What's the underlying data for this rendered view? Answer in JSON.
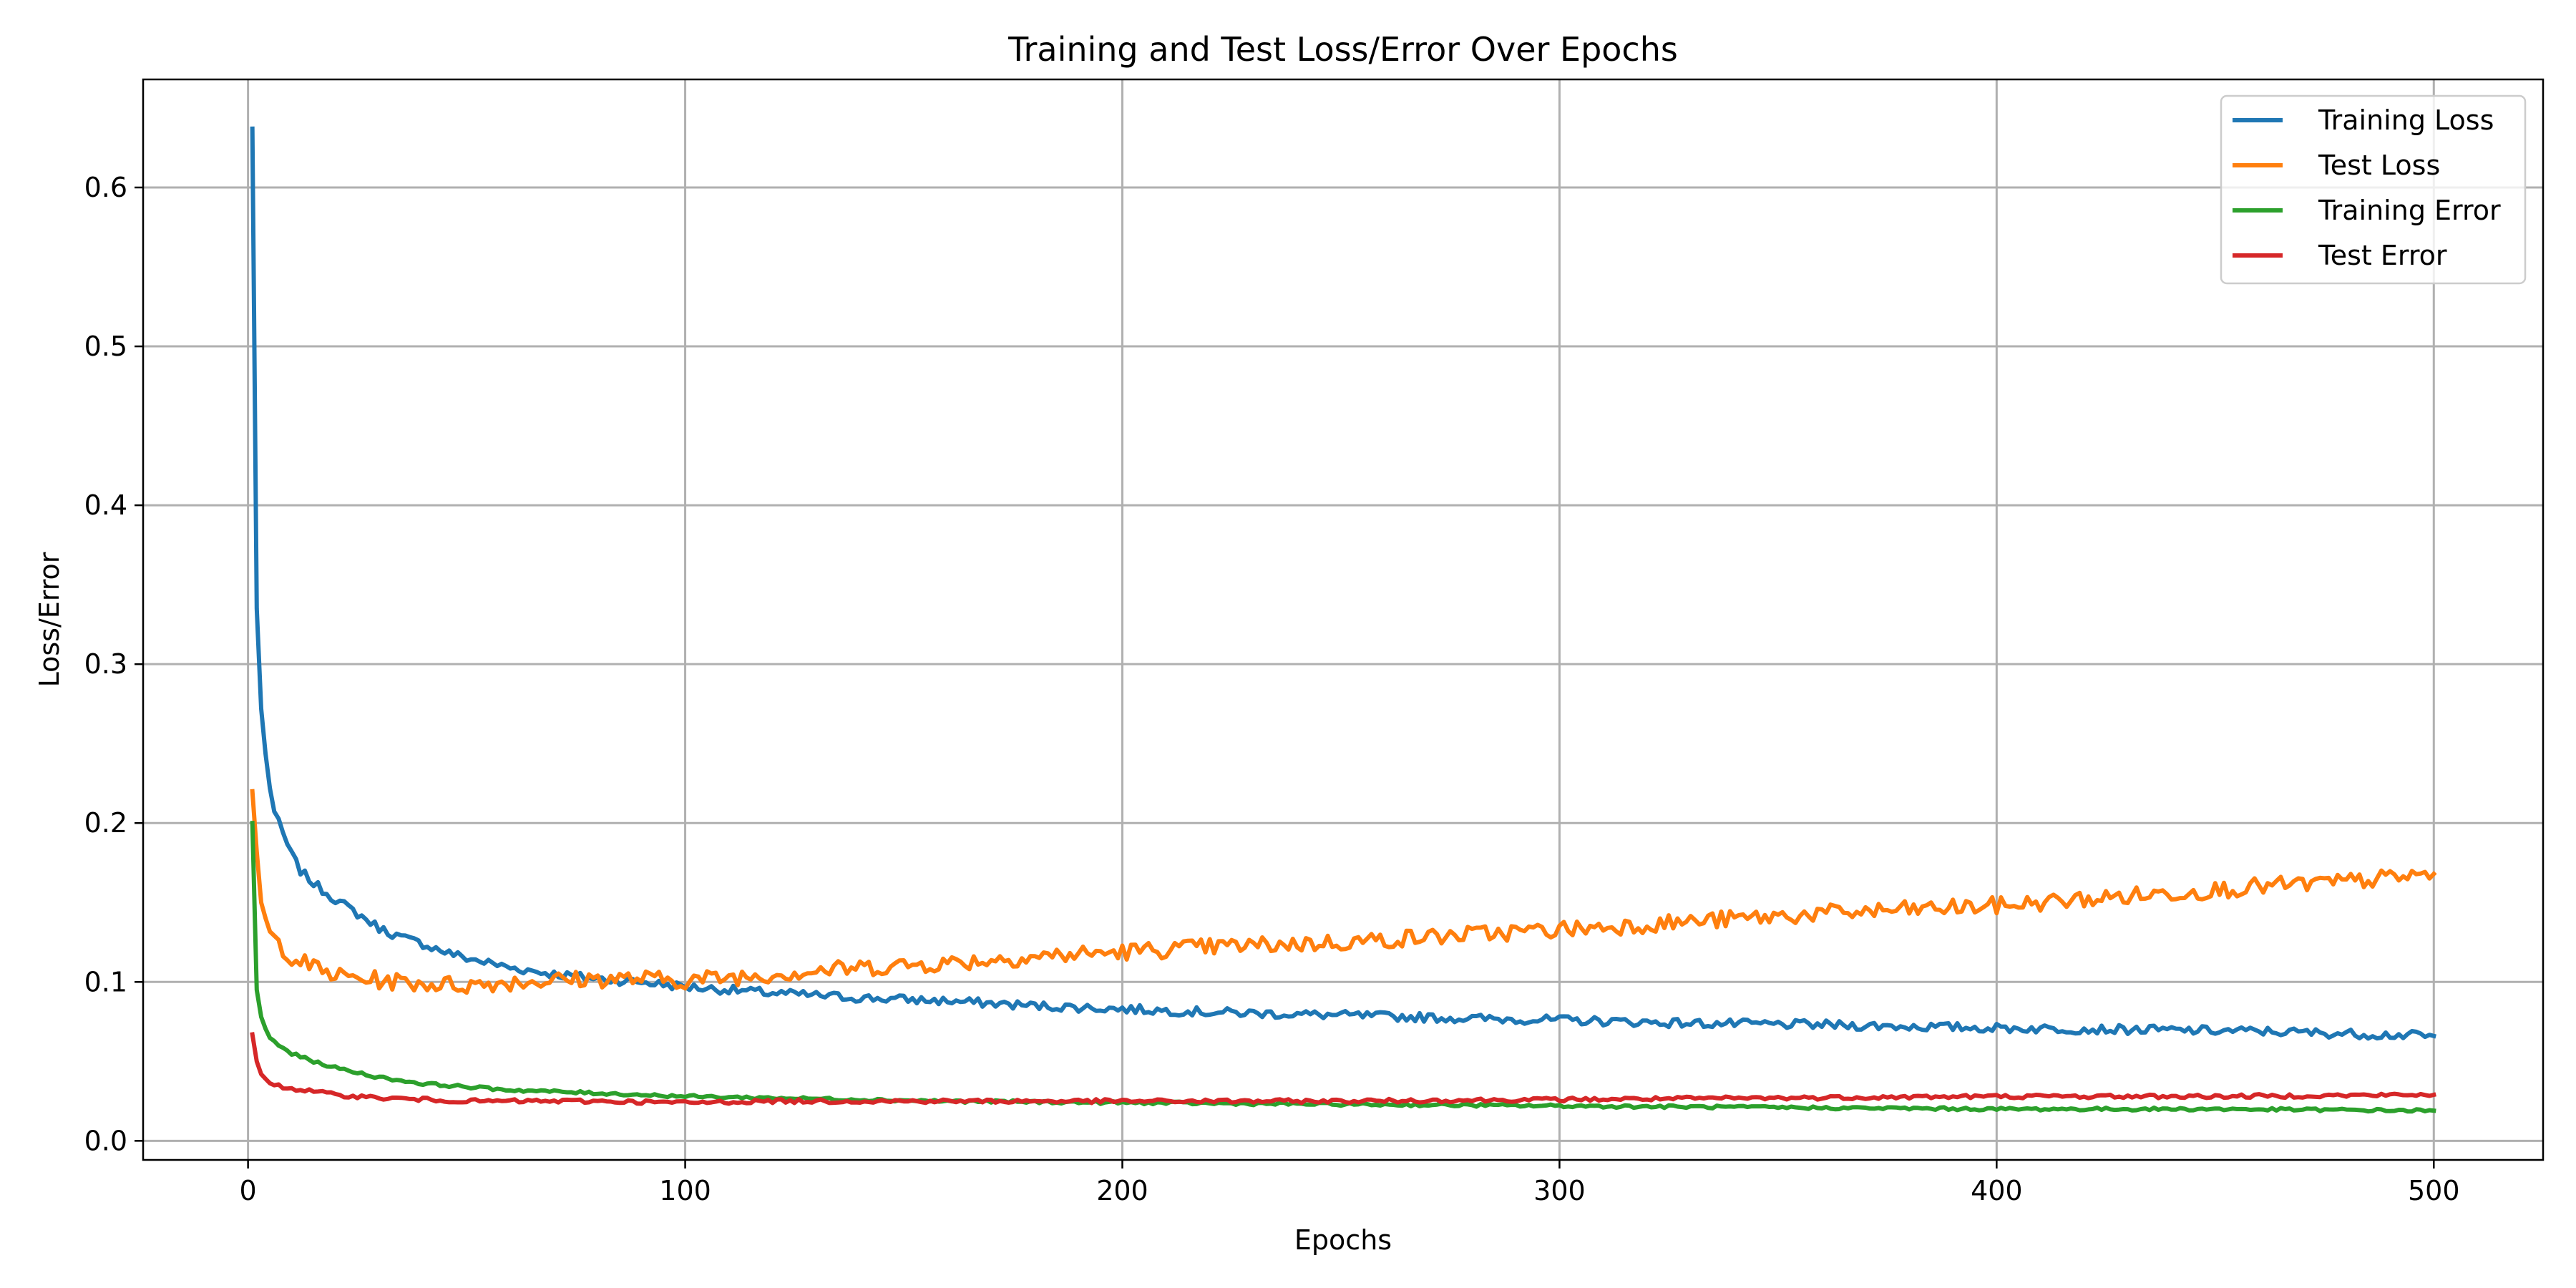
{
  "chart_data": {
    "type": "line",
    "title": "Training and Test Loss/Error Over Epochs",
    "xlabel": "Epochs",
    "ylabel": "Loss/Error",
    "xlim": [
      -24,
      525
    ],
    "ylim": [
      -0.012,
      0.668
    ],
    "xticks": [
      0,
      100,
      200,
      300,
      400,
      500
    ],
    "yticks": [
      0.0,
      0.1,
      0.2,
      0.3,
      0.4,
      0.5,
      0.6
    ],
    "xtick_labels": [
      "0",
      "100",
      "200",
      "300",
      "400",
      "500"
    ],
    "ytick_labels": [
      "0.0",
      "0.1",
      "0.2",
      "0.3",
      "0.4",
      "0.5",
      "0.6"
    ],
    "grid": true,
    "legend_position": "top-right",
    "noise_note_hidden": false,
    "series": [
      {
        "name": "Training Loss",
        "color": "#1f77b4",
        "noise": 0.0028,
        "points": [
          [
            1,
            0.637
          ],
          [
            2,
            0.335
          ],
          [
            3,
            0.272
          ],
          [
            4,
            0.243
          ],
          [
            5,
            0.223
          ],
          [
            6,
            0.207
          ],
          [
            8,
            0.193
          ],
          [
            10,
            0.18
          ],
          [
            12,
            0.17
          ],
          [
            15,
            0.162
          ],
          [
            20,
            0.152
          ],
          [
            25,
            0.143
          ],
          [
            30,
            0.134
          ],
          [
            35,
            0.128
          ],
          [
            40,
            0.124
          ],
          [
            45,
            0.119
          ],
          [
            50,
            0.115
          ],
          [
            60,
            0.109
          ],
          [
            70,
            0.105
          ],
          [
            80,
            0.102
          ],
          [
            90,
            0.1
          ],
          [
            100,
            0.097
          ],
          [
            120,
            0.093
          ],
          [
            140,
            0.09
          ],
          [
            160,
            0.088
          ],
          [
            180,
            0.085
          ],
          [
            200,
            0.083
          ],
          [
            220,
            0.081
          ],
          [
            250,
            0.079
          ],
          [
            280,
            0.077
          ],
          [
            300,
            0.076
          ],
          [
            330,
            0.074
          ],
          [
            360,
            0.073
          ],
          [
            400,
            0.071
          ],
          [
            430,
            0.07
          ],
          [
            460,
            0.069
          ],
          [
            500,
            0.066
          ]
        ]
      },
      {
        "name": "Test Loss",
        "color": "#ff7f0e",
        "noise": 0.0055,
        "points": [
          [
            1,
            0.22
          ],
          [
            2,
            0.182
          ],
          [
            3,
            0.15
          ],
          [
            4,
            0.138
          ],
          [
            5,
            0.13
          ],
          [
            7,
            0.124
          ],
          [
            10,
            0.116
          ],
          [
            15,
            0.109
          ],
          [
            20,
            0.104
          ],
          [
            30,
            0.101
          ],
          [
            40,
            0.099
          ],
          [
            50,
            0.098
          ],
          [
            60,
            0.1
          ],
          [
            70,
            0.101
          ],
          [
            80,
            0.102
          ],
          [
            90,
            0.102
          ],
          [
            100,
            0.101
          ],
          [
            120,
            0.105
          ],
          [
            140,
            0.109
          ],
          [
            160,
            0.112
          ],
          [
            180,
            0.116
          ],
          [
            200,
            0.119
          ],
          [
            220,
            0.122
          ],
          [
            250,
            0.125
          ],
          [
            280,
            0.13
          ],
          [
            300,
            0.133
          ],
          [
            330,
            0.138
          ],
          [
            360,
            0.143
          ],
          [
            400,
            0.148
          ],
          [
            430,
            0.154
          ],
          [
            460,
            0.16
          ],
          [
            480,
            0.163
          ],
          [
            500,
            0.168
          ]
        ]
      },
      {
        "name": "Training Error",
        "color": "#2ca02c",
        "noise": 0.0009,
        "points": [
          [
            1,
            0.2
          ],
          [
            2,
            0.095
          ],
          [
            3,
            0.078
          ],
          [
            4,
            0.07
          ],
          [
            5,
            0.065
          ],
          [
            7,
            0.06
          ],
          [
            10,
            0.055
          ],
          [
            15,
            0.05
          ],
          [
            20,
            0.046
          ],
          [
            30,
            0.04
          ],
          [
            40,
            0.036
          ],
          [
            50,
            0.034
          ],
          [
            60,
            0.032
          ],
          [
            70,
            0.031
          ],
          [
            80,
            0.03
          ],
          [
            100,
            0.028
          ],
          [
            120,
            0.027
          ],
          [
            140,
            0.026
          ],
          [
            160,
            0.025
          ],
          [
            200,
            0.024
          ],
          [
            250,
            0.023
          ],
          [
            300,
            0.022
          ],
          [
            350,
            0.021
          ],
          [
            400,
            0.02
          ],
          [
            450,
            0.02
          ],
          [
            500,
            0.019
          ]
        ]
      },
      {
        "name": "Test Error",
        "color": "#d62728",
        "noise": 0.0012,
        "points": [
          [
            1,
            0.067
          ],
          [
            2,
            0.05
          ],
          [
            3,
            0.042
          ],
          [
            4,
            0.038
          ],
          [
            5,
            0.036
          ],
          [
            8,
            0.034
          ],
          [
            10,
            0.033
          ],
          [
            15,
            0.031
          ],
          [
            20,
            0.029
          ],
          [
            30,
            0.027
          ],
          [
            40,
            0.026
          ],
          [
            50,
            0.025
          ],
          [
            60,
            0.025
          ],
          [
            80,
            0.025
          ],
          [
            100,
            0.024
          ],
          [
            120,
            0.025
          ],
          [
            150,
            0.025
          ],
          [
            200,
            0.025
          ],
          [
            250,
            0.025
          ],
          [
            300,
            0.026
          ],
          [
            350,
            0.027
          ],
          [
            400,
            0.028
          ],
          [
            450,
            0.028
          ],
          [
            500,
            0.029
          ]
        ]
      }
    ]
  }
}
